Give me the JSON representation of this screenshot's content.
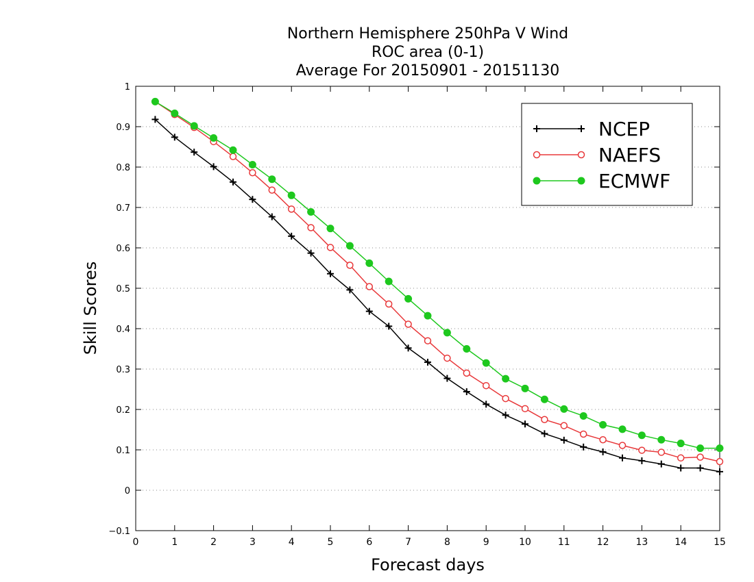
{
  "chart_data": {
    "type": "line",
    "title": [
      "Northern Hemisphere 250hPa V Wind",
      "ROC area (0-1)",
      "Average For 20150901 - 20151130"
    ],
    "xlabel": "Forecast days",
    "ylabel": "Skill Scores",
    "xlim": [
      0,
      15
    ],
    "ylim": [
      -0.1,
      1
    ],
    "x_ticks": [
      "0",
      "1",
      "2",
      "3",
      "4",
      "5",
      "6",
      "7",
      "8",
      "9",
      "10",
      "11",
      "12",
      "13",
      "14",
      "15"
    ],
    "y_ticks": [
      "-0.1",
      "0",
      "0.1",
      "0.2",
      "0.3",
      "0.4",
      "0.5",
      "0.6",
      "0.7",
      "0.8",
      "0.9",
      "1"
    ],
    "grid": true,
    "legend_position": "top-right",
    "x": [
      0.5,
      1,
      1.5,
      2,
      2.5,
      3,
      3.5,
      4,
      4.5,
      5,
      5.5,
      6,
      6.5,
      7,
      7.5,
      8,
      8.5,
      9,
      9.5,
      10,
      10.5,
      11,
      11.5,
      12,
      12.5,
      13,
      13.5,
      14,
      14.5,
      15
    ],
    "series": [
      {
        "name": "NCEP",
        "color": "#000000",
        "marker": "plus",
        "values": [
          0.918,
          0.874,
          0.837,
          0.801,
          0.763,
          0.72,
          0.677,
          0.629,
          0.587,
          0.536,
          0.496,
          0.443,
          0.406,
          0.352,
          0.317,
          0.277,
          0.244,
          0.213,
          0.186,
          0.164,
          0.14,
          0.124,
          0.107,
          0.095,
          0.08,
          0.073,
          0.065,
          0.055,
          0.055,
          0.046
        ]
      },
      {
        "name": "NAEFS",
        "color": "#e8383a",
        "marker": "open-circle",
        "values": [
          0.962,
          0.93,
          0.898,
          0.863,
          0.826,
          0.786,
          0.743,
          0.696,
          0.65,
          0.601,
          0.557,
          0.504,
          0.461,
          0.411,
          0.37,
          0.327,
          0.29,
          0.259,
          0.227,
          0.202,
          0.175,
          0.16,
          0.139,
          0.125,
          0.111,
          0.099,
          0.094,
          0.08,
          0.082,
          0.071
        ]
      },
      {
        "name": "ECMWF",
        "color": "#1ec81e",
        "marker": "filled-circle",
        "values": [
          0.962,
          0.933,
          0.902,
          0.872,
          0.842,
          0.806,
          0.77,
          0.73,
          0.689,
          0.648,
          0.605,
          0.562,
          0.517,
          0.474,
          0.432,
          0.39,
          0.35,
          0.315,
          0.276,
          0.252,
          0.225,
          0.201,
          0.184,
          0.162,
          0.151,
          0.136,
          0.125,
          0.116,
          0.104,
          0.104
        ]
      }
    ]
  }
}
